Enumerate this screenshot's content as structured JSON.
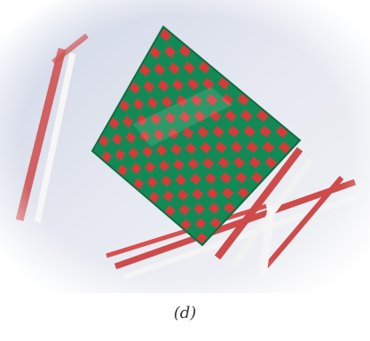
{
  "caption": "(d)",
  "colors": {
    "mat_green": "#138a55",
    "mat_red": "#d83a3a",
    "strip_red": "#cf4b4b",
    "strip_white": "#f0f0f0",
    "vignette": "#ffffff"
  },
  "mat": {
    "grid_cells": 14
  }
}
